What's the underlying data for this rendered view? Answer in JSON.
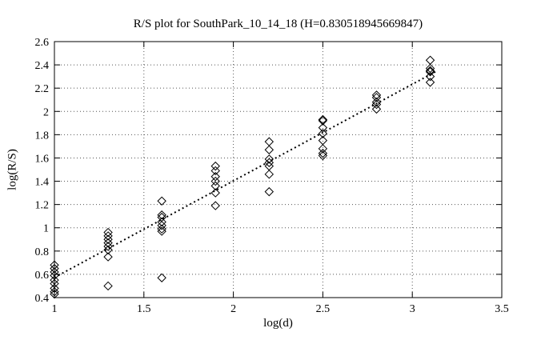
{
  "page": {
    "background": "#ffffff",
    "foreground": "#000000"
  },
  "chart_data": {
    "type": "scatter",
    "title": "R/S plot for SouthPark_10_14_18 (H=0.830518945669847)",
    "hurst_exponent": "0.830518945669847",
    "xlabel": "log(d)",
    "ylabel": "log(R/S)",
    "xlim": [
      1,
      3.5
    ],
    "ylim": [
      0.4,
      2.6
    ],
    "xticks": [
      {
        "value": 1,
        "label": "1"
      },
      {
        "value": 1.5,
        "label": "1.5"
      },
      {
        "value": 2,
        "label": "2"
      },
      {
        "value": 2.5,
        "label": "2.5"
      },
      {
        "value": 3,
        "label": "3"
      },
      {
        "value": 3.5,
        "label": "3.5"
      }
    ],
    "yticks": [
      {
        "value": 0.4,
        "label": "0.4"
      },
      {
        "value": 0.6,
        "label": "0.6"
      },
      {
        "value": 0.8,
        "label": "0.8"
      },
      {
        "value": 1,
        "label": "1"
      },
      {
        "value": 1.2,
        "label": "1.2"
      },
      {
        "value": 1.4,
        "label": "1.4"
      },
      {
        "value": 1.6,
        "label": "1.6"
      },
      {
        "value": 1.8,
        "label": "1.8"
      },
      {
        "value": 2,
        "label": "2"
      },
      {
        "value": 2.2,
        "label": "2.2"
      },
      {
        "value": 2.4,
        "label": "2.4"
      },
      {
        "value": 2.6,
        "label": "2.6"
      }
    ],
    "grid": true,
    "legend": "none",
    "marker": "open-diamond",
    "marker_color": "#000000",
    "grid_color": "#555555",
    "series": [
      {
        "name": "R/S points",
        "points": [
          [
            1.0,
            0.43
          ],
          [
            1.0,
            0.45
          ],
          [
            1.0,
            0.48
          ],
          [
            1.0,
            0.52
          ],
          [
            1.0,
            0.55
          ],
          [
            1.0,
            0.59
          ],
          [
            1.0,
            0.62
          ],
          [
            1.0,
            0.65
          ],
          [
            1.0,
            0.68
          ],
          [
            1.3,
            0.5
          ],
          [
            1.3,
            0.75
          ],
          [
            1.3,
            0.81
          ],
          [
            1.3,
            0.84
          ],
          [
            1.3,
            0.87
          ],
          [
            1.3,
            0.9
          ],
          [
            1.3,
            0.93
          ],
          [
            1.3,
            0.96
          ],
          [
            1.6,
            0.57
          ],
          [
            1.6,
            0.97
          ],
          [
            1.6,
            0.99
          ],
          [
            1.6,
            1.02
          ],
          [
            1.6,
            1.05
          ],
          [
            1.6,
            1.09
          ],
          [
            1.6,
            1.11
          ],
          [
            1.6,
            1.23
          ],
          [
            1.9,
            1.19
          ],
          [
            1.9,
            1.3
          ],
          [
            1.9,
            1.36
          ],
          [
            1.9,
            1.4
          ],
          [
            1.9,
            1.44
          ],
          [
            1.9,
            1.49
          ],
          [
            1.9,
            1.53
          ],
          [
            2.2,
            1.31
          ],
          [
            2.2,
            1.46
          ],
          [
            2.2,
            1.53
          ],
          [
            2.2,
            1.56
          ],
          [
            2.2,
            1.59
          ],
          [
            2.2,
            1.67
          ],
          [
            2.2,
            1.74
          ],
          [
            2.5,
            1.62
          ],
          [
            2.5,
            1.64
          ],
          [
            2.5,
            1.68
          ],
          [
            2.5,
            1.75
          ],
          [
            2.5,
            1.81
          ],
          [
            2.5,
            1.86
          ],
          [
            2.5,
            1.92
          ],
          [
            2.5,
            1.93
          ],
          [
            2.8,
            2.02
          ],
          [
            2.8,
            2.06
          ],
          [
            2.8,
            2.08
          ],
          [
            2.8,
            2.12
          ],
          [
            2.8,
            2.14
          ],
          [
            3.1,
            2.25
          ],
          [
            3.1,
            2.3
          ],
          [
            3.1,
            2.34
          ],
          [
            3.1,
            2.35
          ],
          [
            3.1,
            2.37
          ],
          [
            3.1,
            2.44
          ]
        ]
      }
    ],
    "fit_line": {
      "slope": 0.830518945669847,
      "intercept": -0.258,
      "x_start": 1.0,
      "x_end": 3.13,
      "style": "dotted",
      "color": "#000000"
    }
  }
}
